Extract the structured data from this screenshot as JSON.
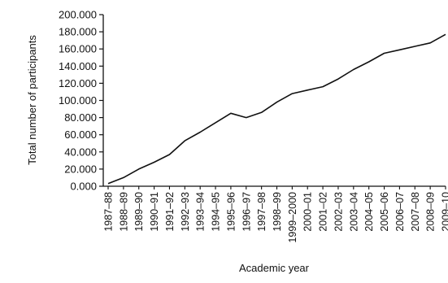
{
  "chart_data": {
    "type": "line",
    "title": "",
    "xlabel": "Academic year",
    "ylabel": "Total number of participants",
    "categories": [
      "1987–88",
      "1988–89",
      "1989–90",
      "1990–91",
      "1991–92",
      "1992–93",
      "1993–94",
      "1994–95",
      "1995–96",
      "1996–97",
      "1997–98",
      "1998–99",
      "1999–2000",
      "2000–01",
      "2001–02",
      "2002–03",
      "2003–04",
      "2004–05",
      "2005–06",
      "2006–07",
      "2007–08",
      "2008–09",
      "2009–10"
    ],
    "series": [
      {
        "values": [
          3000,
          10000,
          20000,
          28000,
          37000,
          53000,
          63000,
          74000,
          85000,
          80000,
          86000,
          98000,
          108000,
          112000,
          116000,
          125000,
          136000,
          145000,
          155000,
          159000,
          163000,
          167000,
          177000
        ]
      }
    ],
    "ylim": [
      0,
      200000
    ],
    "yticks": [
      0,
      20000,
      40000,
      60000,
      80000,
      100000,
      120000,
      140000,
      160000,
      180000,
      200000
    ],
    "ytick_labels": [
      "0.000",
      "20.000",
      "40.000",
      "60.000",
      "80.000",
      "100.000",
      "120.000",
      "140.000",
      "160.000",
      "180.000",
      "200.000"
    ],
    "grid": false,
    "legend": "none",
    "line_color": "#111111"
  }
}
